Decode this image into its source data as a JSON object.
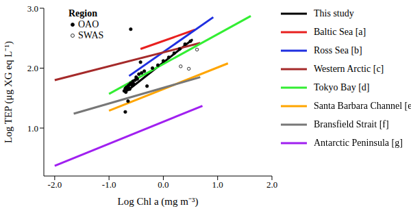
{
  "chart_data": {
    "type": "scatter",
    "x_label": "Log Chl a (mg m⁻³)",
    "y_label": "Log TEP (μg XG eq L⁻¹)",
    "legend_title": "Region",
    "legend": "right",
    "grid": false,
    "xlim": [
      -2.2,
      2.0
    ],
    "ylim": [
      0.2,
      3.0
    ],
    "xticks": [
      {
        "value": -2,
        "label": "-2.0"
      },
      {
        "value": -1,
        "label": "-1.0"
      },
      {
        "value": 0,
        "label": "0.0"
      },
      {
        "value": 1,
        "label": "1.0"
      },
      {
        "value": 2,
        "label": "2.0"
      }
    ],
    "yticks": [
      {
        "value": 1,
        "label": "1.0"
      },
      {
        "value": 2,
        "label": "2.0"
      },
      {
        "value": 3,
        "label": "3.0"
      }
    ],
    "series": [
      {
        "name": "OAO",
        "type": "scatter",
        "marker": "filled_circle",
        "color": "#000000",
        "x": [
          -0.72,
          -0.7,
          -0.69,
          -0.68,
          -0.66,
          -0.65,
          -0.64,
          -0.63,
          -0.62,
          -0.6,
          -0.58,
          -0.56,
          -0.55,
          -0.52,
          -0.5,
          -0.48,
          -0.45,
          -0.42,
          -0.4,
          -0.35,
          -0.3,
          -0.2,
          -0.1,
          0.0,
          0.1,
          0.2,
          0.3,
          0.4,
          0.5,
          -0.7,
          -0.6,
          -0.65
        ],
        "values": [
          1.62,
          1.66,
          1.6,
          1.68,
          1.64,
          1.7,
          1.67,
          1.72,
          1.65,
          1.75,
          1.72,
          1.78,
          1.74,
          1.8,
          1.85,
          1.82,
          1.9,
          2.1,
          1.92,
          1.95,
          1.7,
          2.0,
          2.05,
          2.12,
          2.18,
          2.25,
          2.32,
          2.4,
          2.45,
          1.27,
          2.65,
          1.45
        ]
      },
      {
        "name": "SWAS",
        "type": "scatter",
        "marker": "open_circle",
        "color": "#000000",
        "x": [
          0.32,
          0.47,
          0.62
        ],
        "values": [
          2.03,
          1.99,
          2.31
        ]
      },
      {
        "name": "This study",
        "type": "line",
        "color": "#000000",
        "x": [
          -0.64,
          0.54
        ],
        "values": [
          1.64,
          2.48
        ]
      },
      {
        "name": "Baltic Sea [a]",
        "type": "line",
        "color": "#e8201f",
        "x": [
          -0.42,
          0.58
        ],
        "values": [
          2.32,
          2.64
        ]
      },
      {
        "name": "Ross Sea [b]",
        "type": "line",
        "color": "#1f2fe0",
        "x": [
          -0.63,
          0.92
        ],
        "values": [
          1.87,
          2.85
        ]
      },
      {
        "name": "Western Arctic [c]",
        "type": "line",
        "color": "#a52a2a",
        "x": [
          -2.0,
          0.68
        ],
        "values": [
          1.8,
          2.42
        ]
      },
      {
        "name": "Tokyo Bay [d]",
        "type": "line",
        "color": "#33ee33",
        "x": [
          -1.0,
          1.61
        ],
        "values": [
          1.57,
          2.87
        ]
      },
      {
        "name": "Santa Barbara Channel [e]",
        "type": "line",
        "color": "#ffa500",
        "x": [
          -1.0,
          1.19
        ],
        "values": [
          1.29,
          2.08
        ]
      },
      {
        "name": "Bransfield Strait [f]",
        "type": "line",
        "color": "#777777",
        "x": [
          -1.65,
          0.68
        ],
        "values": [
          1.24,
          1.85
        ]
      },
      {
        "name": "Antarctic Peninsula [g]",
        "type": "line",
        "color": "#a020f0",
        "x": [
          -2.0,
          0.72
        ],
        "values": [
          0.37,
          1.37
        ]
      }
    ]
  }
}
